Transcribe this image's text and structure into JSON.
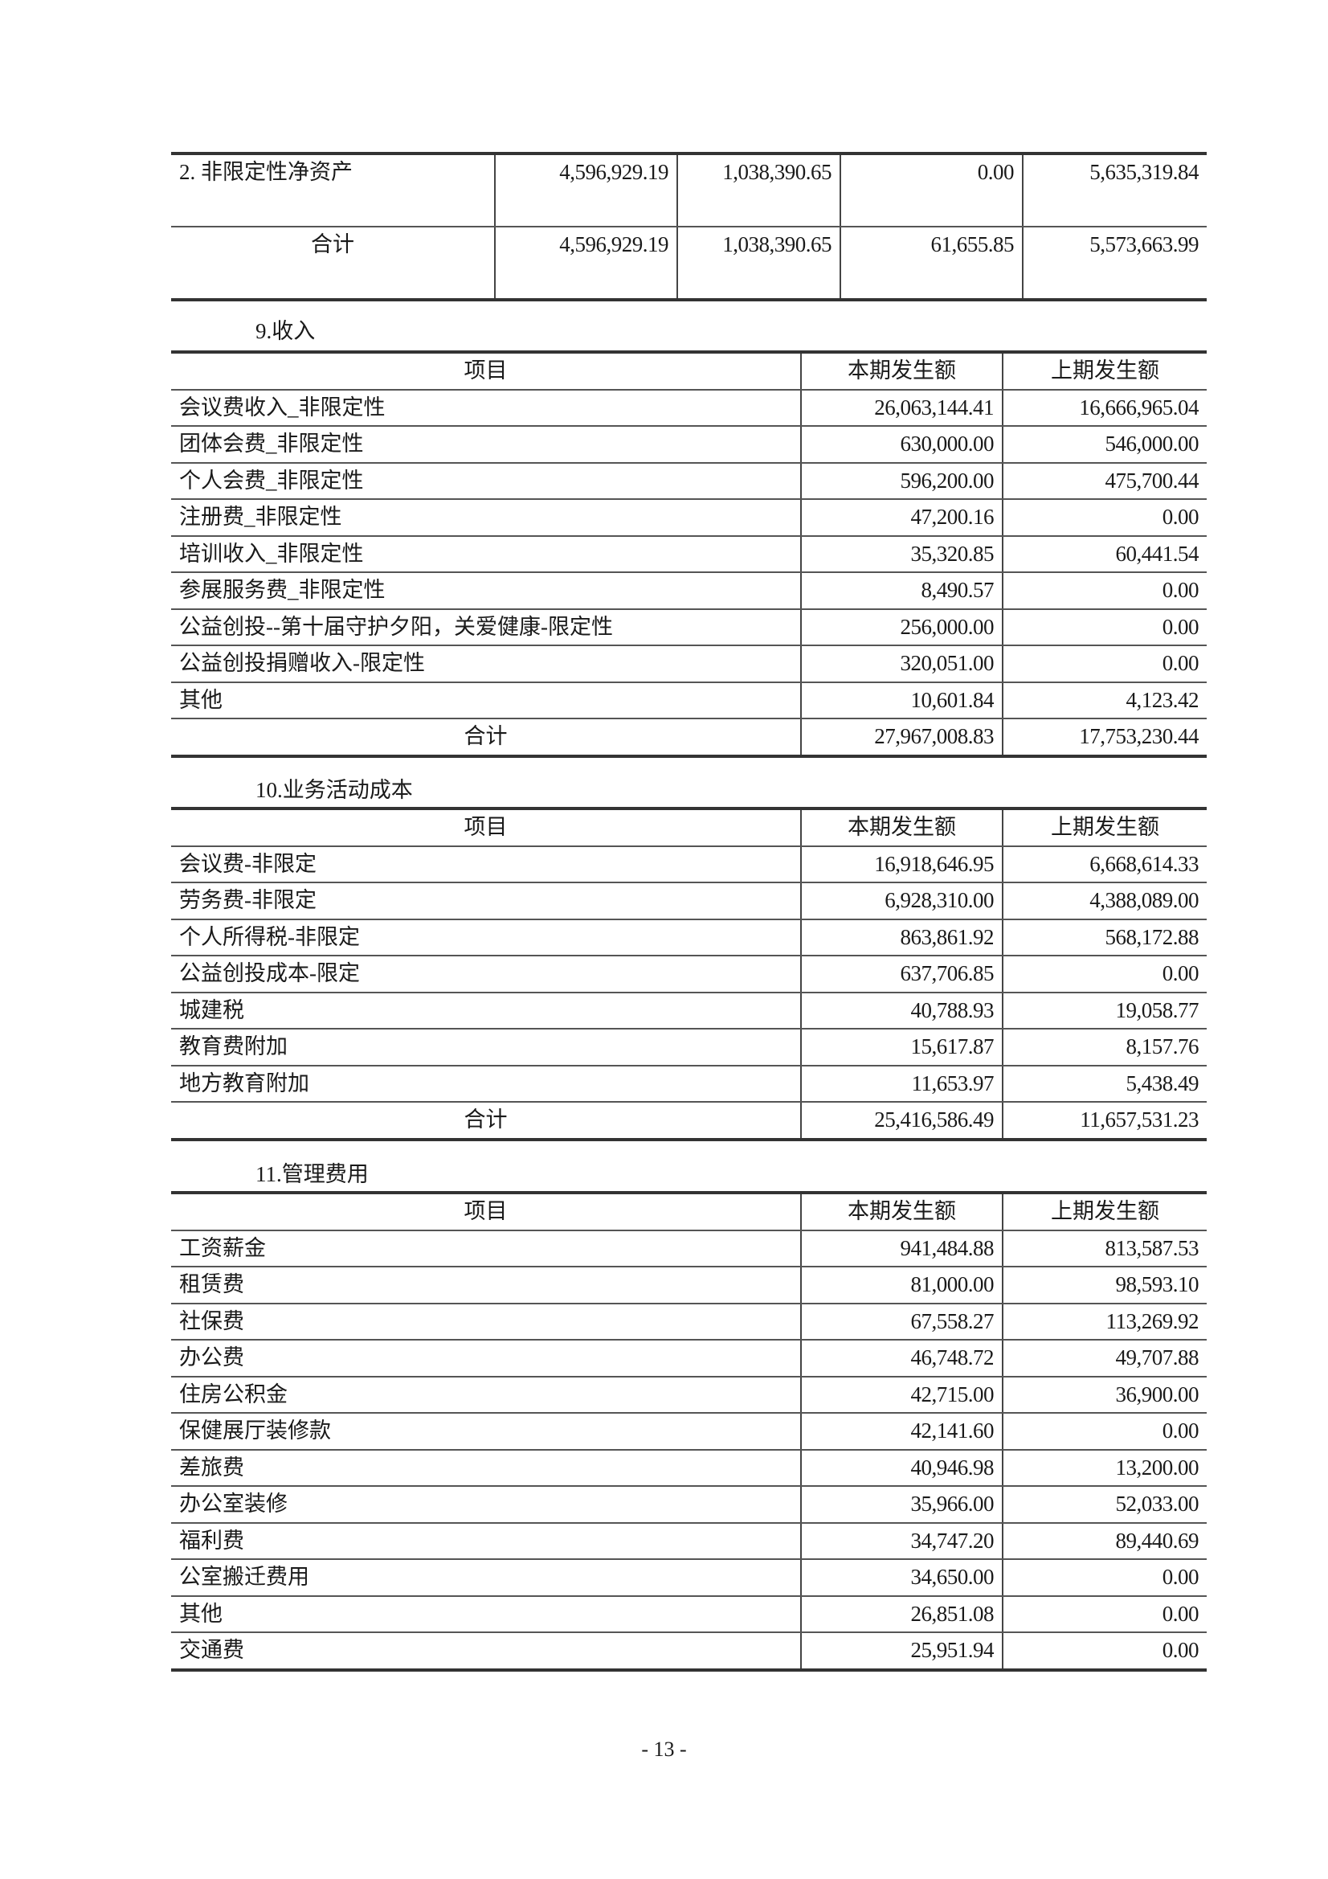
{
  "net_assets_table": {
    "rows": [
      [
        "2. 非限定性净资产",
        "4,596,929.19",
        "1,038,390.65",
        "0.00",
        "5,635,319.84"
      ],
      [
        "合计",
        "4,596,929.19",
        "1,038,390.65",
        "61,655.85",
        "5,573,663.99"
      ]
    ]
  },
  "sections": [
    {
      "title": "9.收入",
      "header": [
        "项目",
        "本期发生额",
        "上期发生额"
      ],
      "rows": [
        [
          "会议费收入_非限定性",
          "26,063,144.41",
          "16,666,965.04"
        ],
        [
          "团体会费_非限定性",
          "630,000.00",
          "546,000.00"
        ],
        [
          "个人会费_非限定性",
          "596,200.00",
          "475,700.44"
        ],
        [
          "注册费_非限定性",
          "47,200.16",
          "0.00"
        ],
        [
          "培训收入_非限定性",
          "35,320.85",
          "60,441.54"
        ],
        [
          "参展服务费_非限定性",
          "8,490.57",
          "0.00"
        ],
        [
          "公益创投--第十届守护夕阳，关爱健康-限定性",
          "256,000.00",
          "0.00"
        ],
        [
          "公益创投捐赠收入-限定性",
          "320,051.00",
          "0.00"
        ],
        [
          "其他",
          "10,601.84",
          "4,123.42"
        ]
      ],
      "total": [
        "合计",
        "27,967,008.83",
        "17,753,230.44"
      ]
    },
    {
      "title": "10.业务活动成本",
      "header": [
        "项目",
        "本期发生额",
        "上期发生额"
      ],
      "rows": [
        [
          "会议费-非限定",
          "16,918,646.95",
          "6,668,614.33"
        ],
        [
          "劳务费-非限定",
          "6,928,310.00",
          "4,388,089.00"
        ],
        [
          "个人所得税-非限定",
          "863,861.92",
          "568,172.88"
        ],
        [
          "公益创投成本-限定",
          "637,706.85",
          "0.00"
        ],
        [
          "城建税",
          "40,788.93",
          "19,058.77"
        ],
        [
          "教育费附加",
          "15,617.87",
          "8,157.76"
        ],
        [
          "地方教育附加",
          "11,653.97",
          "5,438.49"
        ]
      ],
      "total": [
        "合计",
        "25,416,586.49",
        "11,657,531.23"
      ]
    },
    {
      "title": "11.管理费用",
      "header": [
        "项目",
        "本期发生额",
        "上期发生额"
      ],
      "rows": [
        [
          "工资薪金",
          "941,484.88",
          "813,587.53"
        ],
        [
          "租赁费",
          "81,000.00",
          "98,593.10"
        ],
        [
          "社保费",
          "67,558.27",
          "113,269.92"
        ],
        [
          "办公费",
          "46,748.72",
          "49,707.88"
        ],
        [
          "住房公积金",
          "42,715.00",
          "36,900.00"
        ],
        [
          "保健展厅装修款",
          "42,141.60",
          "0.00"
        ],
        [
          "差旅费",
          "40,946.98",
          "13,200.00"
        ],
        [
          "办公室装修",
          "35,966.00",
          "52,033.00"
        ],
        [
          "福利费",
          "34,747.20",
          "89,440.69"
        ],
        [
          "公室搬迁费用",
          "34,650.00",
          "0.00"
        ],
        [
          "其他",
          "26,851.08",
          "0.00"
        ],
        [
          "交通费",
          "25,951.94",
          "0.00"
        ]
      ]
    }
  ],
  "page_number": "- 13 -"
}
